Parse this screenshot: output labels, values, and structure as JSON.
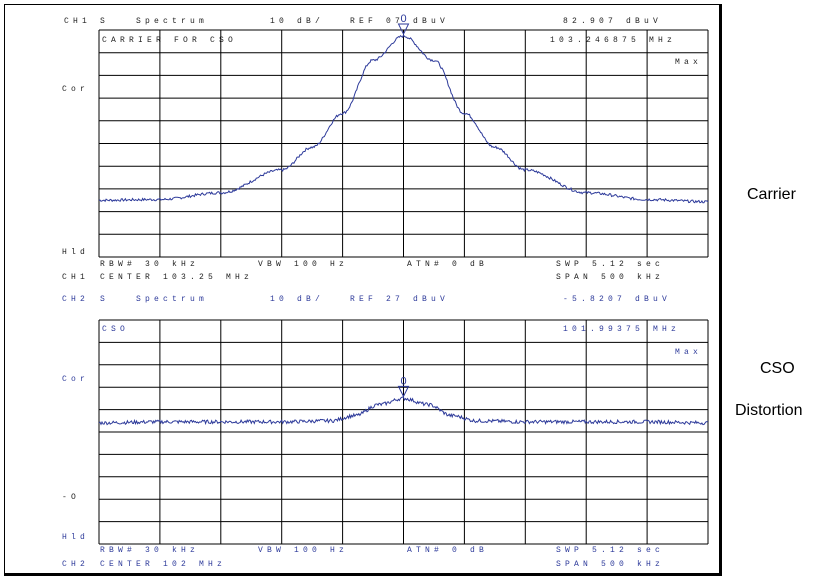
{
  "panels": [
    {
      "ch": "CH1",
      "mode": "S   Spectrum",
      "scale": "10 dB/",
      "ref": "REF 07 dBuV",
      "marker_amp": "82.907 dBuV",
      "label": "CARRIER FOR CSO",
      "marker_freq": "103.246875 MHz",
      "trace_mode": "Max",
      "left_top": "Cor",
      "left_mid": "",
      "left_bottom": "Hld",
      "footer_l1": "RBW# 30 kHz",
      "footer_m1": "VBW 100 Hz",
      "footer_a1": "ATN# 0 dB",
      "footer_r1": "SWP 5.12 sec",
      "footer_ch": "CH1",
      "footer_l2": "CENTER 103.25 MHz",
      "footer_r2": "SPAN 500 kHz",
      "marker_label": "0"
    },
    {
      "ch": "CH2",
      "mode": "S   Spectrum",
      "scale": "10 dB/",
      "ref": "REF 27 dBuV",
      "marker_amp": "-5.8207 dBuV",
      "label": "CSO",
      "marker_freq": "101.99375 MHz",
      "trace_mode": "Max",
      "left_top": "Cor",
      "left_mid": "-O",
      "left_bottom": "Hld",
      "footer_l1": "RBW# 30 kHz",
      "footer_m1": "VBW 100 Hz",
      "footer_a1": "ATN# 0 dB",
      "footer_r1": "SWP 5.12 sec",
      "footer_ch": "CH2",
      "footer_l2": "CENTER 102 MHz",
      "footer_r2": "SPAN 500 kHz",
      "marker_label": "0"
    }
  ],
  "side_labels": {
    "carrier": "Carrier",
    "cso": "CSO",
    "distortion": "Distortion"
  },
  "chart_data": [
    {
      "type": "line",
      "title": "CARRIER FOR CSO",
      "x": [
        -250,
        -200,
        -150,
        -100,
        -75,
        -50,
        -25,
        0,
        25,
        50,
        75,
        100,
        150,
        200,
        250
      ],
      "series": [
        {
          "values": [
            7.5,
            7.6,
            8.5,
            11.5,
            14.5,
            19,
            26,
            29.2,
            26,
            19,
            14.5,
            11.5,
            8.5,
            7.6,
            7.3
          ]
        }
      ],
      "xlabel": "",
      "ylabel": "",
      "xlim": [
        -250,
        250
      ],
      "ylim": [
        0,
        30
      ],
      "grid": true,
      "marker": {
        "x": 0,
        "label": "0"
      },
      "trace_color": "#2d3a9a"
    },
    {
      "type": "line",
      "title": "CSO",
      "x": [
        -250,
        -200,
        -150,
        -100,
        -60,
        -40,
        -20,
        0,
        20,
        40,
        60,
        100,
        150,
        200,
        250
      ],
      "series": [
        {
          "values": [
            11.9,
            12.0,
            12.0,
            12.0,
            12.1,
            12.6,
            13.7,
            14.3,
            13.7,
            12.6,
            12.1,
            12.0,
            12.0,
            12.0,
            11.9
          ]
        }
      ],
      "xlabel": "",
      "ylabel": "",
      "xlim": [
        -250,
        250
      ],
      "ylim": [
        0,
        22
      ],
      "grid": true,
      "marker": {
        "x": 0,
        "label": "0"
      },
      "trace_color": "#2d3a9a"
    }
  ]
}
